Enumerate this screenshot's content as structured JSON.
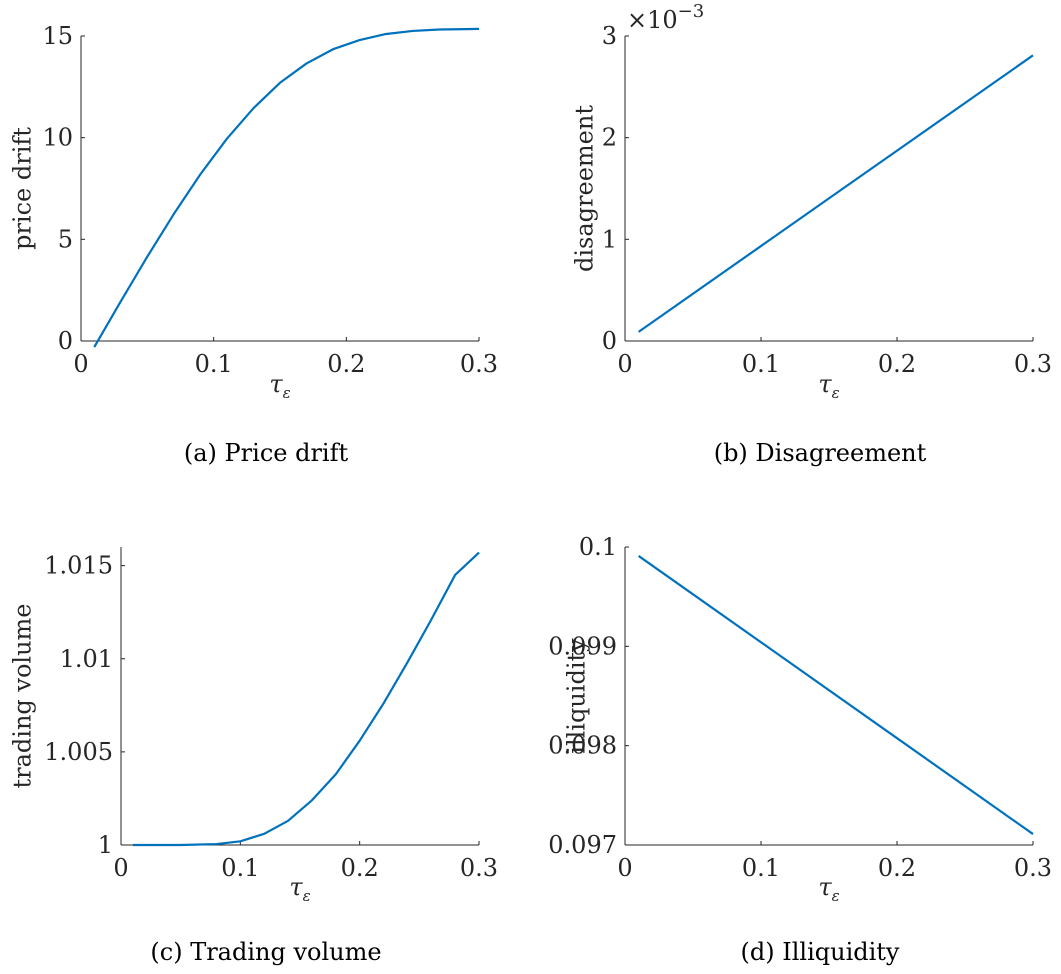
{
  "figure": {
    "line_color": "#0072BD",
    "axis_color": "#262626"
  },
  "chart_data": [
    {
      "type": "line",
      "caption": "(a) Price drift",
      "xlabel": "τ",
      "xlabel_sub": "ε",
      "ylabel": "price drift",
      "xlim": [
        0,
        0.3
      ],
      "ylim": [
        0,
        15
      ],
      "xticks": [
        0,
        0.1,
        0.2,
        0.3
      ],
      "xtick_labels": [
        "0",
        "0.1",
        "0.2",
        "0.3"
      ],
      "yticks": [
        0,
        5,
        10,
        15
      ],
      "ytick_labels": [
        "0",
        "5",
        "10",
        "15"
      ],
      "exponent_label": "",
      "series": [
        {
          "x": [
            0.01,
            0.03,
            0.05,
            0.07,
            0.09,
            0.11,
            0.13,
            0.15,
            0.17,
            0.19,
            0.21,
            0.23,
            0.25,
            0.27,
            0.29,
            0.3
          ],
          "y": [
            -0.3,
            1.95,
            4.15,
            6.25,
            8.2,
            9.95,
            11.45,
            12.7,
            13.65,
            14.35,
            14.8,
            15.1,
            15.25,
            15.32,
            15.34,
            15.35
          ]
        }
      ]
    },
    {
      "type": "line",
      "caption": "(b) Disagreement",
      "xlabel": "τ",
      "xlabel_sub": "ε",
      "ylabel": "disagreement",
      "xlim": [
        0,
        0.3
      ],
      "ylim": [
        0,
        3
      ],
      "xticks": [
        0,
        0.1,
        0.2,
        0.3
      ],
      "xtick_labels": [
        "0",
        "0.1",
        "0.2",
        "0.3"
      ],
      "yticks": [
        0,
        1,
        2,
        3
      ],
      "ytick_labels": [
        "0",
        "1",
        "2",
        "3"
      ],
      "exponent_label": "×10",
      "exponent_power": "−3",
      "series": [
        {
          "x": [
            0.01,
            0.3
          ],
          "y": [
            0.09,
            2.81
          ]
        }
      ]
    },
    {
      "type": "line",
      "caption": "(c) Trading volume",
      "xlabel": "τ",
      "xlabel_sub": "ε",
      "ylabel": "trading volume",
      "xlim": [
        0,
        0.3
      ],
      "ylim": [
        1,
        1.016
      ],
      "xticks": [
        0,
        0.1,
        0.2,
        0.3
      ],
      "xtick_labels": [
        "0",
        "0.1",
        "0.2",
        "0.3"
      ],
      "yticks": [
        1,
        1.005,
        1.01,
        1.015
      ],
      "ytick_labels": [
        "1",
        "1.005",
        "1.01",
        "1.015"
      ],
      "exponent_label": "",
      "series": [
        {
          "x": [
            0.01,
            0.05,
            0.08,
            0.1,
            0.12,
            0.14,
            0.16,
            0.18,
            0.2,
            0.22,
            0.24,
            0.26,
            0.28,
            0.3
          ],
          "y": [
            1.0,
            1.0,
            1.00005,
            1.0002,
            1.0006,
            1.0013,
            1.0024,
            1.0038,
            1.0056,
            1.0076,
            1.0098,
            1.0121,
            1.0145,
            1.0157
          ]
        }
      ]
    },
    {
      "type": "line",
      "caption": "(d) Illiquidity",
      "xlabel": "τ",
      "xlabel_sub": "ε",
      "ylabel": "illiquidity",
      "xlim": [
        0,
        0.3
      ],
      "ylim": [
        0.097,
        0.1
      ],
      "xticks": [
        0,
        0.1,
        0.2,
        0.3
      ],
      "xtick_labels": [
        "0",
        "0.1",
        "0.2",
        "0.3"
      ],
      "yticks": [
        0.097,
        0.098,
        0.099,
        0.1
      ],
      "ytick_labels": [
        "0.097",
        "0.098",
        "0.099",
        "0.1"
      ],
      "exponent_label": "",
      "series": [
        {
          "x": [
            0.01,
            0.3
          ],
          "y": [
            0.09991,
            0.09711
          ]
        }
      ]
    }
  ]
}
